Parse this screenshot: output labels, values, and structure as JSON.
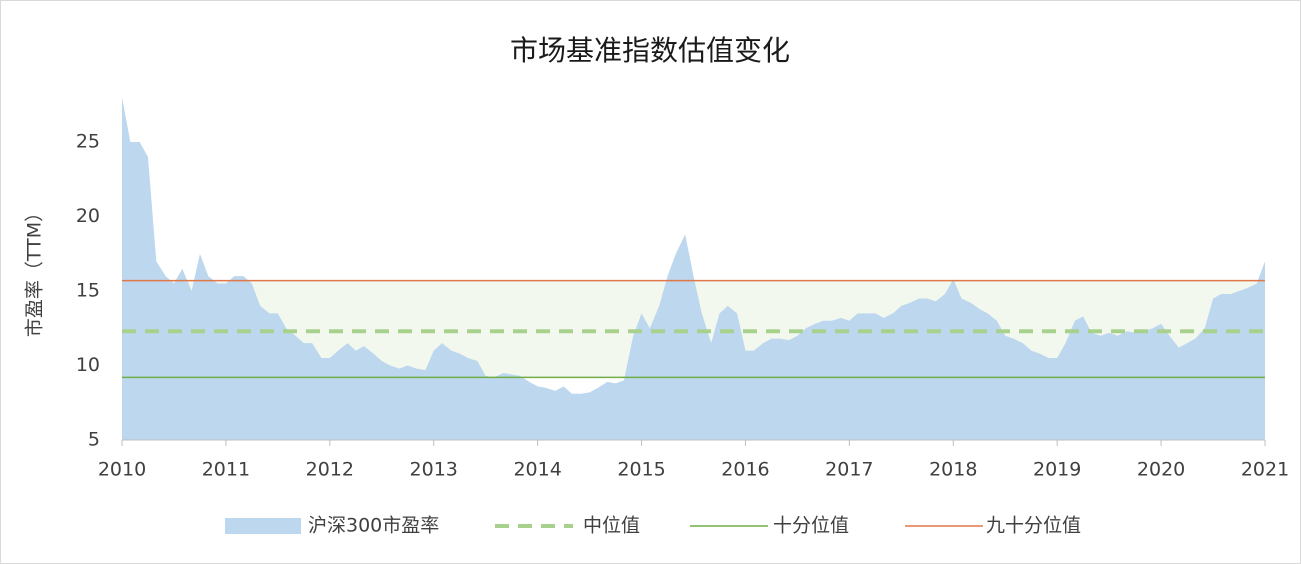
{
  "chart_data": {
    "type": "area",
    "title": "市场基准指数估值变化",
    "y_label": "市盈率（TTM）",
    "x": [
      2010,
      2010.08,
      2010.17,
      2010.25,
      2010.33,
      2010.42,
      2010.5,
      2010.58,
      2010.67,
      2010.75,
      2010.83,
      2010.92,
      2011,
      2011.08,
      2011.17,
      2011.25,
      2011.33,
      2011.42,
      2011.5,
      2011.58,
      2011.67,
      2011.75,
      2011.83,
      2011.92,
      2012,
      2012.08,
      2012.17,
      2012.25,
      2012.33,
      2012.42,
      2012.5,
      2012.58,
      2012.67,
      2012.75,
      2012.83,
      2012.92,
      2013,
      2013.08,
      2013.17,
      2013.25,
      2013.33,
      2013.42,
      2013.5,
      2013.58,
      2013.67,
      2013.75,
      2013.83,
      2013.92,
      2014,
      2014.08,
      2014.17,
      2014.25,
      2014.33,
      2014.42,
      2014.5,
      2014.58,
      2014.67,
      2014.75,
      2014.83,
      2014.92,
      2015,
      2015.08,
      2015.17,
      2015.25,
      2015.33,
      2015.42,
      2015.5,
      2015.58,
      2015.67,
      2015.75,
      2015.83,
      2015.92,
      2016,
      2016.08,
      2016.17,
      2016.25,
      2016.33,
      2016.42,
      2016.5,
      2016.58,
      2016.67,
      2016.75,
      2016.83,
      2016.92,
      2017,
      2017.08,
      2017.17,
      2017.25,
      2017.33,
      2017.42,
      2017.5,
      2017.58,
      2017.67,
      2017.75,
      2017.83,
      2017.92,
      2018,
      2018.08,
      2018.17,
      2018.25,
      2018.33,
      2018.42,
      2018.5,
      2018.58,
      2018.67,
      2018.75,
      2018.83,
      2018.92,
      2019,
      2019.08,
      2019.17,
      2019.25,
      2019.33,
      2019.42,
      2019.5,
      2019.58,
      2019.67,
      2019.75,
      2019.83,
      2019.92,
      2020,
      2020.08,
      2020.17,
      2020.25,
      2020.33,
      2020.42,
      2020.5,
      2020.58,
      2020.67,
      2020.75,
      2020.83,
      2020.92,
      2021
    ],
    "series": [
      {
        "name": "沪深300市盈率",
        "color": "#bdd7ee",
        "values": [
          28,
          25,
          25,
          24,
          17,
          16,
          15.5,
          16.5,
          15,
          17.5,
          16,
          15.5,
          15.5,
          16,
          16,
          15.5,
          14,
          13.5,
          13.5,
          12.5,
          12,
          11.5,
          11.5,
          10.5,
          10.5,
          11,
          11.5,
          11,
          11.3,
          10.8,
          10.3,
          10,
          9.8,
          10,
          9.8,
          9.7,
          11,
          11.5,
          11,
          10.8,
          10.5,
          10.3,
          9.3,
          9.2,
          9.5,
          9.4,
          9.3,
          8.9,
          8.6,
          8.5,
          8.3,
          8.6,
          8.1,
          8.1,
          8.2,
          8.5,
          8.9,
          8.8,
          9,
          12,
          13.5,
          12.5,
          14,
          16,
          17.5,
          18.8,
          16,
          13.5,
          11.5,
          13.5,
          14,
          13.5,
          11,
          11,
          11.5,
          11.8,
          11.8,
          11.7,
          12,
          12.5,
          12.8,
          13,
          13,
          13.2,
          13,
          13.5,
          13.5,
          13.5,
          13.2,
          13.5,
          14,
          14.2,
          14.5,
          14.5,
          14.3,
          14.8,
          15.8,
          14.5,
          14.2,
          13.8,
          13.5,
          13,
          12,
          11.8,
          11.5,
          11,
          10.8,
          10.5,
          10.5,
          11.5,
          13,
          13.3,
          12.2,
          12,
          12.2,
          12,
          12.3,
          12.2,
          12.3,
          12.5,
          12.8,
          12,
          11.2,
          11.5,
          11.8,
          12.5,
          14.5,
          14.8,
          14.8,
          15,
          15.2,
          15.5,
          17
        ]
      }
    ],
    "reference_lines": [
      {
        "name": "中位值",
        "color": "#a9d18e",
        "value": 12.3,
        "dashed": true
      },
      {
        "name": "十分位值",
        "color": "#70ad47",
        "value": 9.2,
        "dashed": false
      },
      {
        "name": "九十分位值",
        "color": "#e0784a",
        "value": 15.7,
        "dashed": false
      }
    ],
    "band_color": "#f3f8ee",
    "xlim": [
      2010,
      2021
    ],
    "xticks": [
      2010,
      2011,
      2012,
      2013,
      2014,
      2015,
      2016,
      2017,
      2018,
      2019,
      2020,
      2021
    ],
    "ylim": [
      5,
      30
    ],
    "yticks": [
      5,
      10,
      15,
      20,
      25
    ],
    "grid": false
  }
}
